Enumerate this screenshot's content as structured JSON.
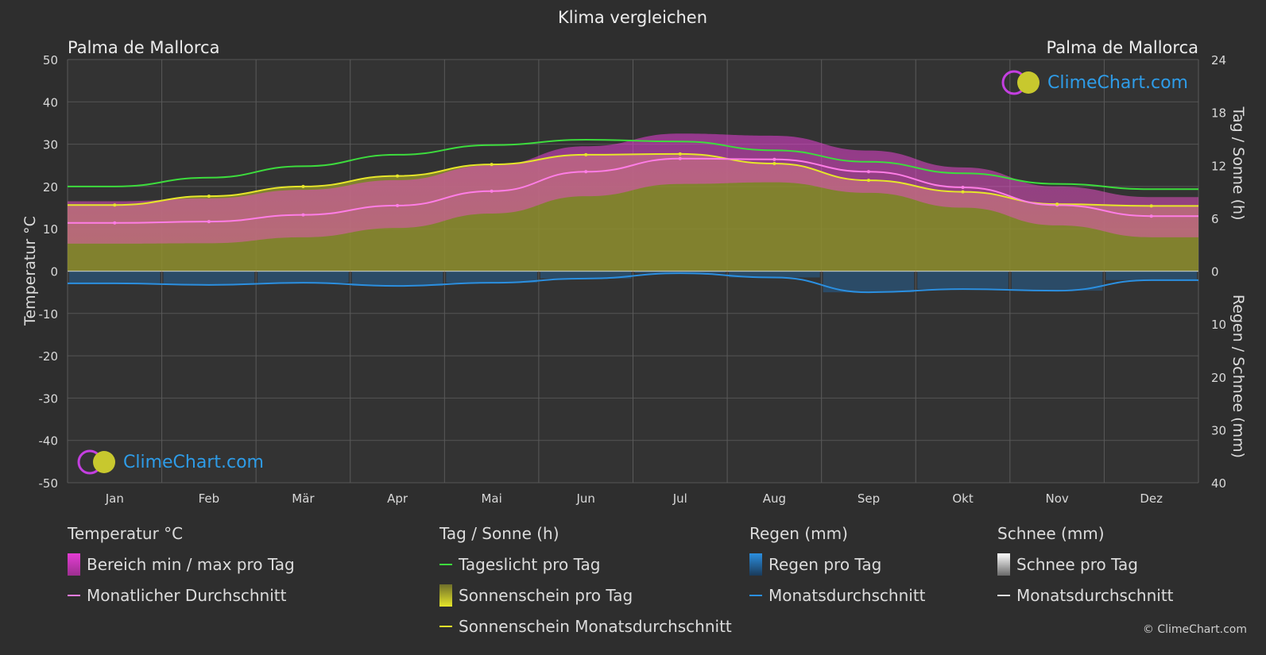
{
  "title": "Klima vergleichen",
  "location_left": "Palma de Mallorca",
  "location_right": "Palma de Mallorca",
  "brand": "ClimeChart.com",
  "copyright": "© ClimeChart.com",
  "colors": {
    "background": "#2e2e2e",
    "temp_range": "#e53dd5",
    "temp_avg": "#ff7de6",
    "daylight": "#3ddc3d",
    "sunshine_fill": "#8f8f2e",
    "sunshine_avg": "#e6e62a",
    "rain": "#1e78c8",
    "rain_avg": "#2b8fe0",
    "snow": "#d8d8d8",
    "brand": "#2e9ce8"
  },
  "chart_data": {
    "type": "area",
    "categories": [
      "Jan",
      "Feb",
      "Mär",
      "Apr",
      "Mai",
      "Jun",
      "Jul",
      "Aug",
      "Sep",
      "Okt",
      "Nov",
      "Dez"
    ],
    "y_left": {
      "label": "Temperatur °C",
      "range": [
        -50,
        50
      ],
      "ticks": [
        50,
        40,
        30,
        20,
        10,
        0,
        -10,
        -20,
        -30,
        -40,
        -50
      ]
    },
    "y_right_top": {
      "label": "Tag / Sonne (h)",
      "range": [
        0,
        24
      ],
      "ticks": [
        24,
        18,
        12,
        6,
        0
      ]
    },
    "y_right_bottom": {
      "label": "Regen / Schnee (mm)",
      "range": [
        0,
        40
      ],
      "ticks": [
        0,
        10,
        20,
        30,
        40
      ]
    },
    "grid": true,
    "series": [
      {
        "name": "Tageslicht pro Tag",
        "unit": "h",
        "values": [
          9.6,
          10.6,
          11.9,
          13.2,
          14.3,
          14.9,
          14.7,
          13.7,
          12.4,
          11.1,
          9.9,
          9.3
        ]
      },
      {
        "name": "Sonnenschein Monatsdurchschnitt",
        "unit": "h",
        "values": [
          7.5,
          8.5,
          9.6,
          10.8,
          12.1,
          13.2,
          13.3,
          12.2,
          10.3,
          9.0,
          7.6,
          7.4
        ]
      },
      {
        "name": "Monatlicher Durchschnitt",
        "unit": "°C",
        "values": [
          11.4,
          11.7,
          13.3,
          15.5,
          18.9,
          23.5,
          26.6,
          26.4,
          23.5,
          19.8,
          15.6,
          13.0
        ]
      },
      {
        "name": "Bereich min / max pro Tag",
        "unit": "°C",
        "min": [
          6.5,
          6.6,
          8.0,
          10.2,
          13.6,
          17.7,
          20.6,
          21.0,
          18.5,
          15.0,
          10.8,
          8.0
        ],
        "max": [
          16.5,
          17.2,
          19.2,
          21.5,
          25.0,
          29.5,
          32.5,
          32.0,
          28.5,
          24.5,
          20.0,
          17.5
        ]
      },
      {
        "name": "Monatsdurchschnitt (Regen)",
        "unit": "mm",
        "values": [
          2.3,
          2.6,
          2.2,
          2.8,
          2.2,
          1.4,
          0.4,
          1.2,
          4.0,
          3.4,
          3.7,
          1.7
        ]
      },
      {
        "name": "Monatsdurchschnitt (Schnee)",
        "unit": "mm",
        "values": [
          0,
          0,
          0,
          0,
          0,
          0,
          0,
          0,
          0,
          0,
          0,
          0
        ]
      }
    ]
  },
  "legend": {
    "groups": [
      {
        "title": "Temperatur °C",
        "items": [
          "Bereich min / max pro Tag",
          "Monatlicher Durchschnitt"
        ]
      },
      {
        "title": "Tag / Sonne (h)",
        "items": [
          "Tageslicht pro Tag",
          "Sonnenschein pro Tag",
          "Sonnenschein Monatsdurchschnitt"
        ]
      },
      {
        "title": "Regen (mm)",
        "items": [
          "Regen pro Tag",
          "Monatsdurchschnitt"
        ]
      },
      {
        "title": "Schnee (mm)",
        "items": [
          "Schnee pro Tag",
          "Monatsdurchschnitt"
        ]
      }
    ]
  }
}
